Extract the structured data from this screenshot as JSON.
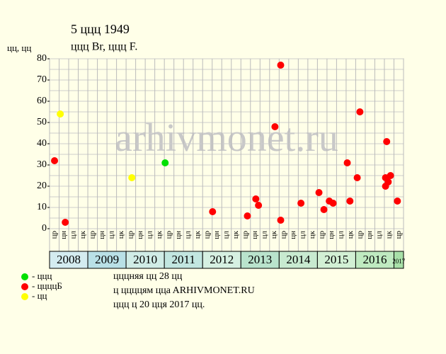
{
  "chart_data": {
    "type": "scatter",
    "title": "5 ццц 1949",
    "subtitle": "ццц Br, ццц F.",
    "y_label": "цц, цц",
    "watermark": "arhivmonet.ru",
    "xlim": [
      2008,
      2017.25
    ],
    "xticks": [
      2008,
      2008.25,
      2008.5,
      2008.75,
      2009,
      2009.25,
      2009.5,
      2009.75,
      2010,
      2010.25,
      2010.5,
      2010.75,
      2011,
      2011.25,
      2011.5,
      2011.75,
      2012,
      2012.25,
      2012.5,
      2012.75,
      2013,
      2013.25,
      2013.5,
      2013.75,
      2014,
      2014.25,
      2014.5,
      2014.75,
      2015,
      2015.25,
      2015.5,
      2015.75,
      2016,
      2016.25,
      2016.5,
      2016.75,
      2017,
      2017.25
    ],
    "ylim": [
      0,
      80
    ],
    "yticks": [
      0,
      10,
      20,
      30,
      40,
      50,
      60,
      70,
      80
    ],
    "ygrid": [
      0,
      5,
      10,
      15,
      20,
      25,
      30,
      35,
      40,
      45,
      50,
      55,
      60,
      65,
      70,
      75,
      80
    ],
    "grid": true,
    "quarter_labels": [
      "цр",
      "цн",
      "цл",
      "цк"
    ],
    "years": [
      {
        "label": "2008",
        "start": 2008,
        "end": 2009,
        "color": "#d4ecf0"
      },
      {
        "label": "2009",
        "start": 2009,
        "end": 2010,
        "color": "#b9e0e6"
      },
      {
        "label": "2010",
        "start": 2010,
        "end": 2011,
        "color": "#d0ece6"
      },
      {
        "label": "2011",
        "start": 2011,
        "end": 2012,
        "color": "#c2e6e0"
      },
      {
        "label": "2012",
        "start": 2012,
        "end": 2013,
        "color": "#d6f0e2"
      },
      {
        "label": "2013",
        "start": 2013,
        "end": 2014,
        "color": "#b9e3cc"
      },
      {
        "label": "2014",
        "start": 2014,
        "end": 2015,
        "color": "#c8ead0"
      },
      {
        "label": "2015",
        "start": 2015,
        "end": 2016,
        "color": "#d2f0d4"
      },
      {
        "label": "2016",
        "start": 2016,
        "end": 2017,
        "color": "#bfeac0"
      },
      {
        "label": "2017",
        "start": 2017,
        "end": 2017.25,
        "color": "#a8e0a8"
      }
    ],
    "series": [
      {
        "name": "- ццц",
        "color": "#00e000",
        "x": [
          2011.02
        ],
        "values": [
          31
        ]
      },
      {
        "name": "- ццццБ",
        "color": "#ff0000",
        "x": [
          2008.13,
          2008.41,
          2012.26,
          2013.17,
          2013.39,
          2013.46,
          2013.89,
          2014.04,
          2014.04,
          2014.57,
          2015.04,
          2015.17,
          2015.31,
          2015.41,
          2015.78,
          2015.85,
          2016.04,
          2016.11,
          2016.78,
          2016.78,
          2016.81,
          2016.85,
          2016.91,
          2017.09
        ],
        "values": [
          32,
          3,
          8,
          6,
          14,
          11,
          48,
          77,
          4,
          12,
          17,
          9,
          13,
          12,
          31,
          13,
          24,
          55,
          20,
          24,
          41,
          22,
          25,
          13
        ]
      },
      {
        "name": "- цц",
        "color": "#ffff00",
        "x": [
          2008.28,
          2010.15
        ],
        "values": [
          54,
          24
        ]
      }
    ],
    "notes": [
      "цццняя цц 28 цц",
      "ц ццццям ццa ARHIVMONET.RU",
      "ццц ц 20 цця 2017 цц."
    ]
  }
}
